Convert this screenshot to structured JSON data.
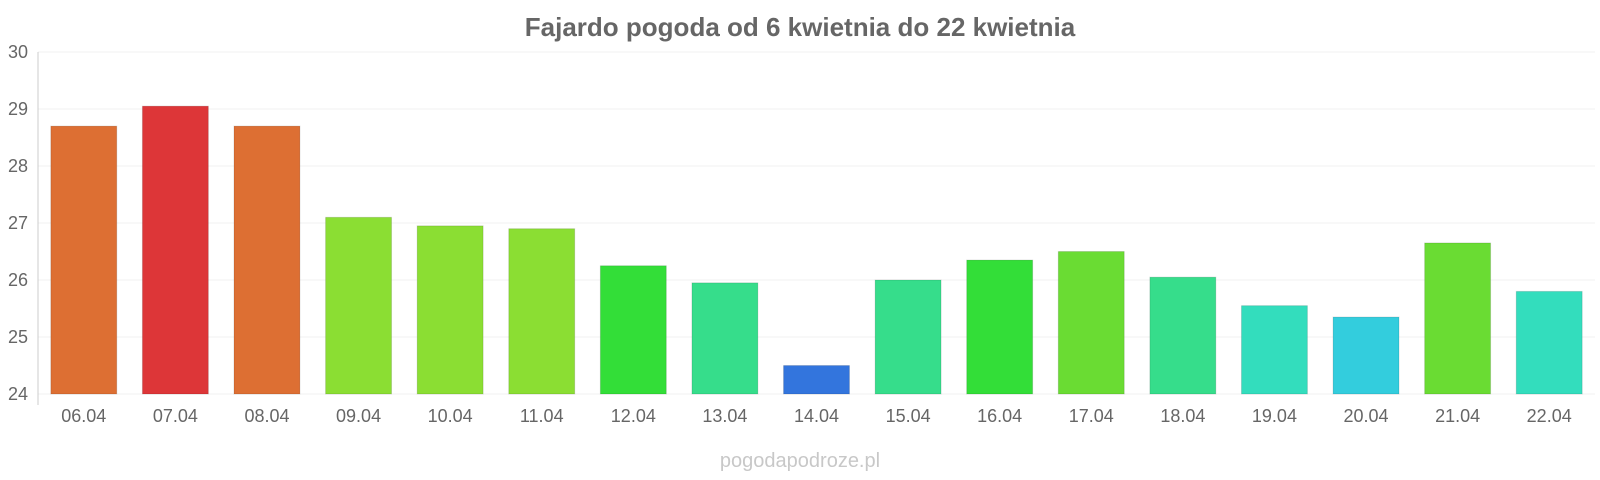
{
  "chart_data": {
    "type": "bar",
    "title": "Fajardo pogoda od 6 kwietnia do 22 kwietnia",
    "xlabel": "",
    "ylabel": "",
    "ylim": [
      24,
      30
    ],
    "yticks": [
      "24",
      "25",
      "26",
      "27",
      "28",
      "29",
      "30"
    ],
    "grid": true,
    "categories": [
      "06.04",
      "07.04",
      "08.04",
      "09.04",
      "10.04",
      "11.04",
      "12.04",
      "13.04",
      "14.04",
      "15.04",
      "16.04",
      "17.04",
      "18.04",
      "19.04",
      "20.04",
      "21.04",
      "22.04"
    ],
    "values": [
      28.7,
      29.05,
      28.7,
      27.1,
      26.95,
      26.9,
      26.25,
      25.95,
      24.5,
      26.0,
      26.35,
      26.5,
      26.05,
      25.55,
      25.35,
      26.65,
      25.8
    ],
    "colors": [
      "#dd6f33",
      "#dd3638",
      "#dd6f33",
      "#8bde33",
      "#8bde33",
      "#8bde33",
      "#33de38",
      "#36dd8b",
      "#3375dd",
      "#36dd8b",
      "#33de38",
      "#6adc33",
      "#36dd8b",
      "#33ddbd",
      "#33cddd",
      "#6adc33",
      "#33ddbd"
    ]
  },
  "watermark": "pogodapodroze.pl"
}
